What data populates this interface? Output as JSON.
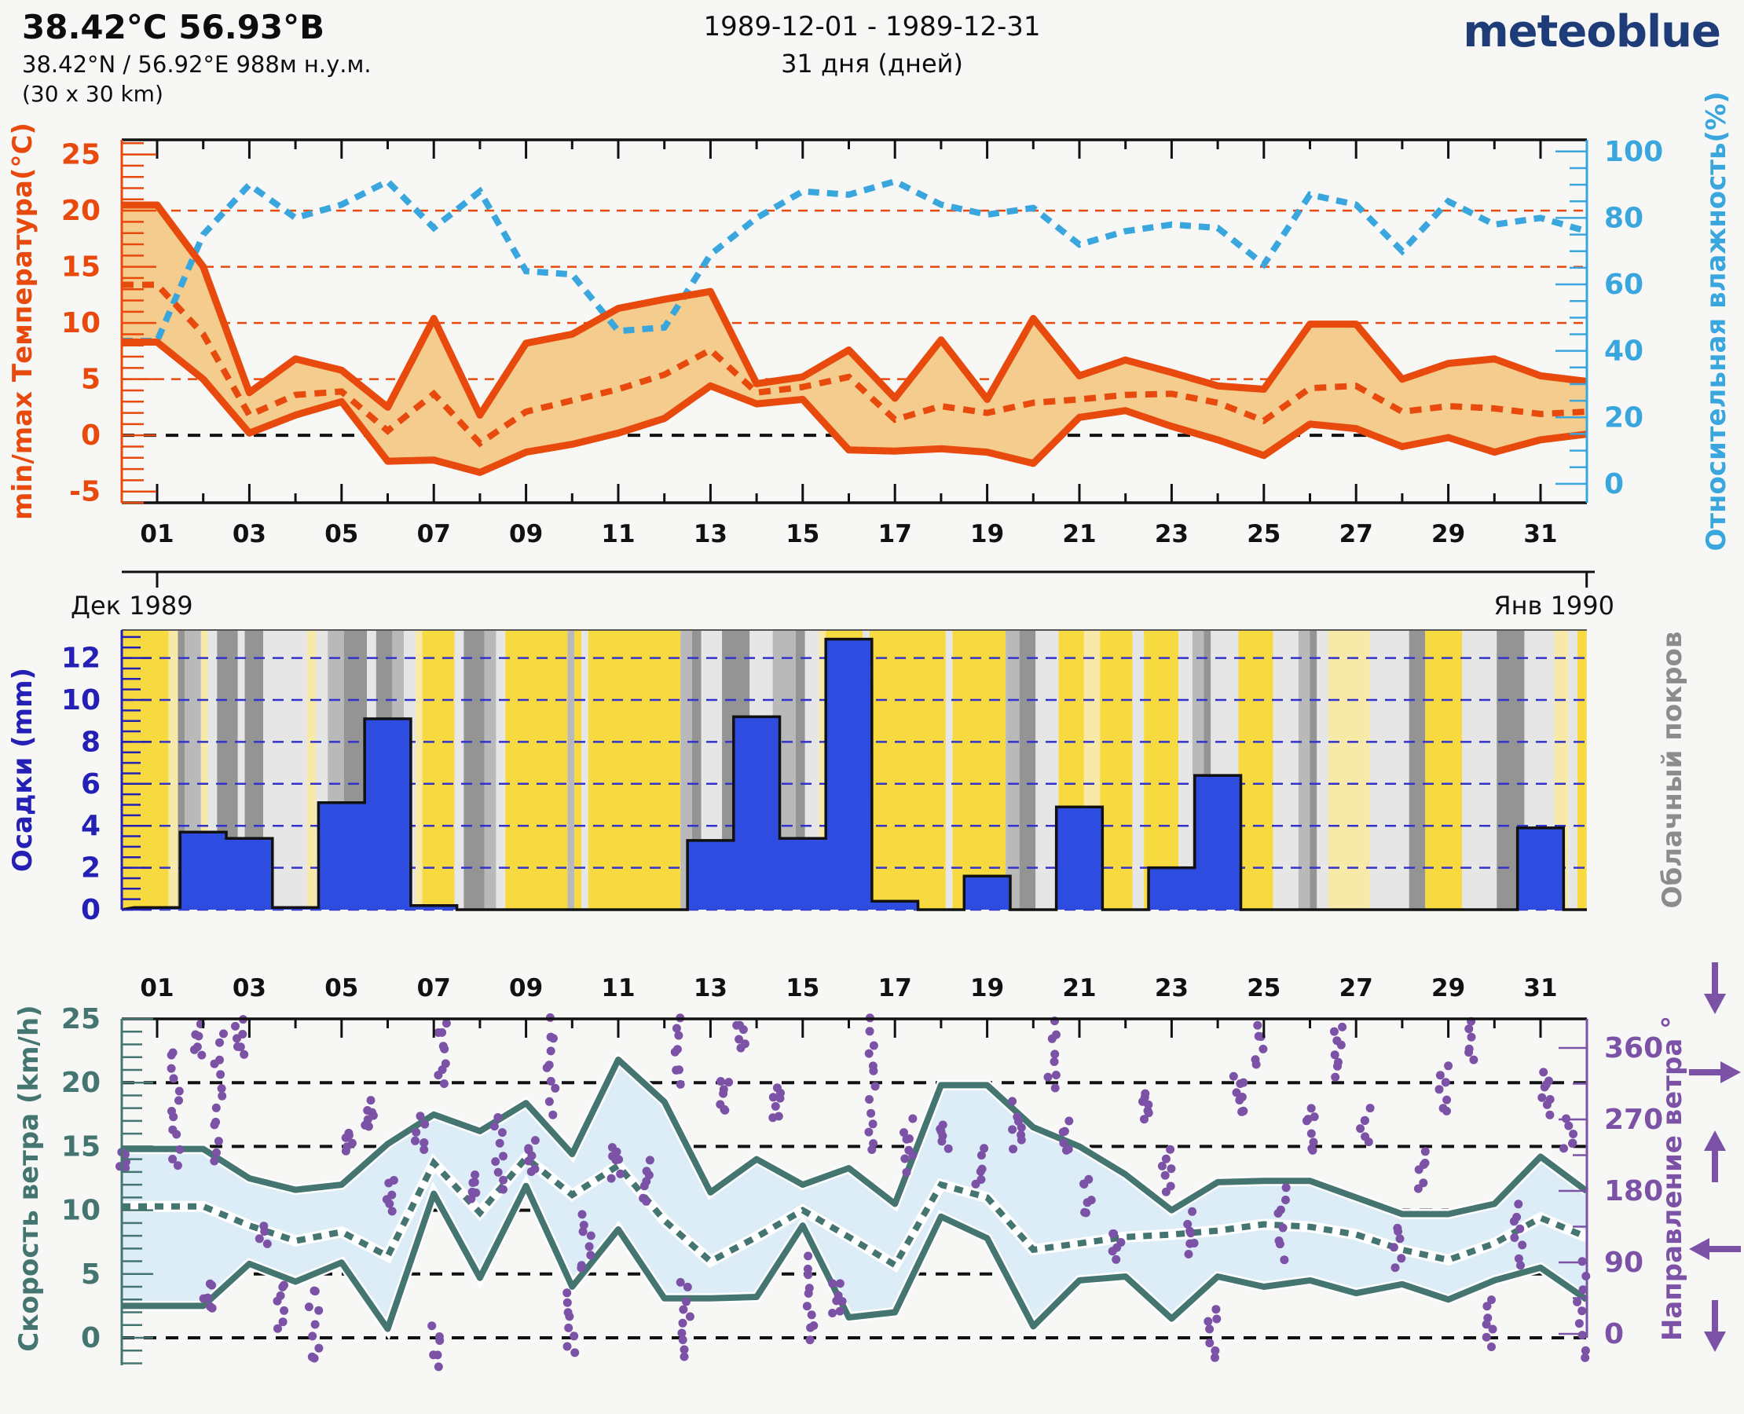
{
  "header": {
    "title": "38.42°C 56.93°B",
    "subtitle": "38.42°N / 56.92°E   988м н.у.м.",
    "area": "(30 x 30 km)",
    "date_range": "1989-12-01 - 1989-12-31",
    "days_count": "31 дня (дней)",
    "logo": "meteoblue"
  },
  "colors": {
    "page_bg": "#f7f7f6",
    "orange": "#e8490d",
    "temp_band_fill": "#f4cc8d",
    "humidity_blue": "#3aa6de",
    "precip_bar_blue": "#2e4ce0",
    "precip_axis_blue": "#2520b5",
    "precip_grid_blue": "#3333cc",
    "cloud_label_gray": "#8c8c8c",
    "teal": "#447571",
    "wind_band_fill": "#ddedf8",
    "purple": "#7b52a6",
    "logo_navy": "#1d3c78",
    "frame_black": "#111111",
    "cloud_palette": {
      "y": "#f7d940",
      "py": "#f7e9a8",
      "lg": "#e6e6e6",
      "mg": "#b9b9b9",
      "dg": "#949494"
    }
  },
  "chart_data": [
    {
      "type": "line",
      "name": "temperature-humidity",
      "left_axis_label": "min/max Температура(°C)",
      "right_axis_label": "Относительная влажность(%)",
      "x_tick_labels": [
        "01",
        "03",
        "05",
        "07",
        "09",
        "11",
        "13",
        "15",
        "17",
        "19",
        "21",
        "23",
        "25",
        "27",
        "29",
        "31"
      ],
      "month_left": "Дек 1989",
      "month_right": "Янв 1990",
      "yticks_left": [
        -5,
        0,
        5,
        10,
        15,
        20,
        25
      ],
      "yticks_right": [
        0,
        20,
        40,
        60,
        80,
        100
      ],
      "ylim_left": [
        -6.0,
        26.3
      ],
      "ylim_right": [
        -5.7,
        103.5
      ],
      "grid": "dashed orange at 5..20, dashed black at 0",
      "legend_position": "axes colored as series",
      "days": [
        1,
        2,
        3,
        4,
        5,
        6,
        7,
        8,
        9,
        10,
        11,
        12,
        13,
        14,
        15,
        16,
        17,
        18,
        19,
        20,
        21,
        22,
        23,
        24,
        25,
        26,
        27,
        28,
        29,
        30,
        31,
        32
      ],
      "series": [
        {
          "name": "temp_max",
          "values": [
            20.5,
            15.0,
            3.8,
            6.8,
            5.8,
            2.5,
            10.4,
            1.8,
            8.2,
            9.0,
            11.3,
            12.1,
            12.8,
            4.6,
            5.2,
            7.6,
            3.3,
            8.5,
            3.2,
            10.4,
            5.3,
            6.7,
            5.6,
            4.4,
            4.1,
            9.9,
            9.9,
            5.0,
            6.4,
            6.8,
            5.3,
            4.8
          ]
        },
        {
          "name": "temp_min",
          "values": [
            8.3,
            5.0,
            0.2,
            1.8,
            3.0,
            -2.3,
            -2.2,
            -3.3,
            -1.5,
            -0.8,
            0.2,
            1.5,
            4.4,
            2.8,
            3.2,
            -1.3,
            -1.4,
            -1.2,
            -1.5,
            -2.5,
            1.6,
            2.2,
            0.8,
            -0.4,
            -1.8,
            1.0,
            0.6,
            -1.0,
            -0.2,
            -1.5,
            -0.4,
            0.1
          ]
        },
        {
          "name": "temp_mean",
          "values": [
            13.4,
            9.0,
            1.8,
            3.6,
            3.9,
            0.4,
            3.7,
            -0.7,
            2.1,
            3.1,
            4.1,
            5.4,
            7.6,
            3.8,
            4.3,
            5.2,
            1.4,
            2.6,
            2.0,
            2.9,
            3.2,
            3.6,
            3.7,
            2.9,
            1.3,
            4.2,
            4.4,
            2.1,
            2.6,
            2.4,
            1.9,
            2.1
          ]
        },
        {
          "name": "humidity",
          "values": [
            43,
            75,
            90,
            80,
            84,
            91,
            77,
            88,
            64,
            63,
            46,
            47,
            69,
            80,
            88,
            87,
            91,
            84,
            81,
            83,
            72,
            76,
            78,
            77,
            66,
            87,
            84,
            70,
            85,
            78,
            80,
            76
          ]
        }
      ]
    },
    {
      "type": "bar",
      "name": "precipitation-cloudcover",
      "left_axis_label": "Осадки (mm)",
      "right_axis_label": "Облачный покров",
      "yticks_left": [
        0,
        2,
        4,
        6,
        8,
        10,
        12
      ],
      "ylim_left": [
        0,
        13.3
      ],
      "grid": "dashed blue at 0..12 step 2",
      "days": [
        1,
        2,
        3,
        4,
        5,
        6,
        7,
        8,
        9,
        10,
        11,
        12,
        13,
        14,
        15,
        16,
        17,
        18,
        19,
        20,
        21,
        22,
        23,
        24,
        25,
        26,
        27,
        28,
        29,
        30,
        31,
        32
      ],
      "values": [
        0.1,
        3.7,
        3.4,
        0.1,
        5.1,
        9.1,
        0.2,
        0,
        0,
        0,
        0,
        0,
        3.3,
        9.2,
        3.4,
        12.9,
        0.4,
        0,
        1.6,
        0,
        4.9,
        0,
        2.0,
        6.4,
        0,
        0,
        0,
        0,
        0,
        0,
        3.9,
        0
      ],
      "cloud_segments": [
        [
          0.2,
          1.25,
          "y"
        ],
        [
          1.25,
          1.45,
          "py"
        ],
        [
          1.45,
          1.6,
          "dg"
        ],
        [
          1.6,
          1.95,
          "mg"
        ],
        [
          1.95,
          2.1,
          "py"
        ],
        [
          2.1,
          2.3,
          "lg"
        ],
        [
          2.3,
          2.75,
          "dg"
        ],
        [
          2.75,
          2.9,
          "lg"
        ],
        [
          2.9,
          3.3,
          "dg"
        ],
        [
          3.3,
          4.25,
          "lg"
        ],
        [
          4.25,
          4.45,
          "py"
        ],
        [
          4.45,
          4.7,
          "lg"
        ],
        [
          4.7,
          5.05,
          "mg"
        ],
        [
          5.05,
          5.55,
          "dg"
        ],
        [
          5.55,
          5.75,
          "lg"
        ],
        [
          5.75,
          6.1,
          "dg"
        ],
        [
          6.1,
          6.35,
          "mg"
        ],
        [
          6.35,
          6.6,
          "lg"
        ],
        [
          6.6,
          6.75,
          "py"
        ],
        [
          6.75,
          7.45,
          "y"
        ],
        [
          7.45,
          7.65,
          "lg"
        ],
        [
          7.65,
          8.1,
          "dg"
        ],
        [
          8.1,
          8.35,
          "mg"
        ],
        [
          8.35,
          8.55,
          "lg"
        ],
        [
          8.55,
          9.9,
          "y"
        ],
        [
          9.9,
          10.05,
          "mg"
        ],
        [
          10.05,
          10.2,
          "y"
        ],
        [
          10.2,
          10.35,
          "lg"
        ],
        [
          10.35,
          12.35,
          "y"
        ],
        [
          12.35,
          12.6,
          "mg"
        ],
        [
          12.6,
          12.8,
          "dg"
        ],
        [
          12.8,
          13.25,
          "lg"
        ],
        [
          13.25,
          13.85,
          "dg"
        ],
        [
          13.85,
          14.35,
          "lg"
        ],
        [
          14.35,
          14.85,
          "mg"
        ],
        [
          14.85,
          15.05,
          "dg"
        ],
        [
          15.05,
          15.35,
          "lg"
        ],
        [
          15.35,
          15.5,
          "py"
        ],
        [
          15.5,
          16.3,
          "y"
        ],
        [
          16.3,
          16.45,
          "lg"
        ],
        [
          16.45,
          18.1,
          "y"
        ],
        [
          18.1,
          18.25,
          "lg"
        ],
        [
          18.25,
          19.4,
          "y"
        ],
        [
          19.4,
          19.7,
          "mg"
        ],
        [
          19.7,
          20.05,
          "dg"
        ],
        [
          20.05,
          20.55,
          "lg"
        ],
        [
          20.55,
          21.1,
          "y"
        ],
        [
          21.1,
          21.45,
          "py"
        ],
        [
          21.45,
          22.15,
          "y"
        ],
        [
          22.15,
          22.4,
          "lg"
        ],
        [
          22.4,
          23.15,
          "y"
        ],
        [
          23.15,
          23.45,
          "lg"
        ],
        [
          23.45,
          23.7,
          "mg"
        ],
        [
          23.7,
          23.85,
          "dg"
        ],
        [
          23.85,
          24.45,
          "lg"
        ],
        [
          24.45,
          25.2,
          "y"
        ],
        [
          25.2,
          25.75,
          "lg"
        ],
        [
          25.75,
          26.0,
          "mg"
        ],
        [
          26.0,
          26.15,
          "dg"
        ],
        [
          26.15,
          26.4,
          "lg"
        ],
        [
          26.4,
          27.3,
          "py"
        ],
        [
          27.3,
          28.15,
          "lg"
        ],
        [
          28.15,
          28.5,
          "dg"
        ],
        [
          28.5,
          29.3,
          "y"
        ],
        [
          29.3,
          30.05,
          "lg"
        ],
        [
          30.05,
          30.65,
          "dg"
        ],
        [
          30.65,
          31.3,
          "lg"
        ],
        [
          31.3,
          31.6,
          "py"
        ],
        [
          31.6,
          31.8,
          "lg"
        ],
        [
          31.8,
          32.0,
          "y"
        ]
      ]
    },
    {
      "type": "line",
      "name": "wind",
      "left_axis_label": "Скорость ветра (km/h)",
      "right_axis_label": "Направление ветра °",
      "x_tick_labels": [
        "01",
        "03",
        "05",
        "07",
        "09",
        "11",
        "13",
        "15",
        "17",
        "19",
        "21",
        "23",
        "25",
        "27",
        "29",
        "31"
      ],
      "yticks_left": [
        0,
        5,
        10,
        15,
        20,
        25
      ],
      "yticks_right": [
        0,
        90,
        180,
        270,
        360
      ],
      "ylim_left": [
        0,
        25
      ],
      "ylim_right": [
        0,
        360
      ],
      "grid": "dashed black at 0,5,10,15,20",
      "days": [
        1,
        2,
        3,
        4,
        5,
        6,
        7,
        8,
        9,
        10,
        11,
        12,
        13,
        14,
        15,
        16,
        17,
        18,
        19,
        20,
        21,
        22,
        23,
        24,
        25,
        26,
        27,
        28,
        29,
        30,
        31,
        32
      ],
      "series": [
        {
          "name": "wind_max",
          "values": [
            14.8,
            14.8,
            12.5,
            11.6,
            12.0,
            15.2,
            17.5,
            16.2,
            18.4,
            14.4,
            21.8,
            18.5,
            11.4,
            14.0,
            12.0,
            13.3,
            10.5,
            19.8,
            19.8,
            16.5,
            15.0,
            12.8,
            10.0,
            12.2,
            12.3,
            12.3,
            11.0,
            9.7,
            9.7,
            10.5,
            14.2,
            11.5
          ]
        },
        {
          "name": "wind_min",
          "values": [
            2.5,
            2.5,
            5.8,
            4.4,
            5.9,
            0.7,
            11.3,
            4.7,
            11.9,
            4.0,
            8.5,
            3.1,
            3.1,
            3.2,
            8.8,
            1.6,
            2.0,
            9.5,
            7.8,
            0.9,
            4.5,
            4.8,
            1.5,
            4.8,
            4.0,
            4.5,
            3.5,
            4.2,
            3.0,
            4.5,
            5.5,
            3.0
          ]
        },
        {
          "name": "wind_mean",
          "values": [
            10.3,
            10.3,
            8.8,
            7.6,
            8.3,
            6.4,
            13.7,
            9.8,
            14.1,
            11.2,
            13.5,
            9.2,
            6.0,
            7.9,
            10.0,
            7.9,
            5.7,
            12.0,
            11.0,
            6.9,
            7.4,
            7.9,
            8.1,
            8.4,
            8.9,
            8.7,
            8.1,
            6.9,
            6.1,
            7.4,
            9.4,
            7.9
          ]
        }
      ],
      "direction_segments_day_from_to_n": [
        [
          0.3,
          205,
          230,
          5
        ],
        [
          1.4,
          210,
          360,
          13
        ],
        [
          1.9,
          350,
          392,
          6
        ],
        [
          2.1,
          30,
          65,
          6
        ],
        [
          2.35,
          220,
          375,
          13
        ],
        [
          2.8,
          352,
          390,
          7
        ],
        [
          3.3,
          118,
          136,
          4
        ],
        [
          3.7,
          10,
          65,
          7
        ],
        [
          4.4,
          -35,
          60,
          9
        ],
        [
          5.15,
          230,
          255,
          6
        ],
        [
          5.6,
          258,
          290,
          7
        ],
        [
          6.05,
          155,
          190,
          6
        ],
        [
          6.7,
          230,
          268,
          7
        ],
        [
          7.2,
          318,
          392,
          9
        ],
        [
          7.05,
          -40,
          10,
          6
        ],
        [
          7.85,
          165,
          200,
          6
        ],
        [
          8.4,
          185,
          268,
          9
        ],
        [
          9.15,
          205,
          240,
          7
        ],
        [
          9.55,
          278,
          392,
          10
        ],
        [
          9.95,
          -25,
          50,
          8
        ],
        [
          10.3,
          80,
          150,
          8
        ],
        [
          10.95,
          200,
          240,
          7
        ],
        [
          11.6,
          165,
          215,
          7
        ],
        [
          12.25,
          318,
          392,
          8
        ],
        [
          12.45,
          -45,
          65,
          11
        ],
        [
          13.3,
          280,
          318,
          7
        ],
        [
          13.65,
          355,
          392,
          6
        ],
        [
          14.45,
          275,
          310,
          7
        ],
        [
          15.15,
          -10,
          100,
          10
        ],
        [
          15.75,
          20,
          65,
          7
        ],
        [
          16.5,
          230,
          392,
          13
        ],
        [
          17.3,
          210,
          268,
          8
        ],
        [
          18.05,
          230,
          265,
          6
        ],
        [
          18.85,
          190,
          228,
          6
        ],
        [
          19.65,
          230,
          288,
          8
        ],
        [
          20.4,
          305,
          392,
          8
        ],
        [
          20.75,
          230,
          268,
          6
        ],
        [
          21.2,
          150,
          200,
          7
        ],
        [
          21.8,
          90,
          130,
          6
        ],
        [
          22.4,
          268,
          308,
          7
        ],
        [
          22.9,
          180,
          228,
          7
        ],
        [
          23.4,
          100,
          150,
          7
        ],
        [
          23.9,
          -30,
          30,
          7
        ],
        [
          24.45,
          280,
          330,
          8
        ],
        [
          24.9,
          340,
          390,
          6
        ],
        [
          25.4,
          100,
          180,
          8
        ],
        [
          26.0,
          230,
          288,
          8
        ],
        [
          26.6,
          330,
          392,
          8
        ],
        [
          27.2,
          240,
          280,
          6
        ],
        [
          27.9,
          90,
          140,
          6
        ],
        [
          28.45,
          180,
          230,
          6
        ],
        [
          28.9,
          280,
          340,
          7
        ],
        [
          29.5,
          348,
          392,
          6
        ],
        [
          29.9,
          -20,
          40,
          7
        ],
        [
          30.5,
          90,
          160,
          8
        ],
        [
          31.1,
          280,
          330,
          8
        ],
        [
          31.6,
          230,
          268,
          6
        ],
        [
          31.9,
          -30,
          90,
          9
        ]
      ],
      "direction_arrows": [
        "down",
        "right",
        "up",
        "left",
        "down"
      ]
    }
  ]
}
